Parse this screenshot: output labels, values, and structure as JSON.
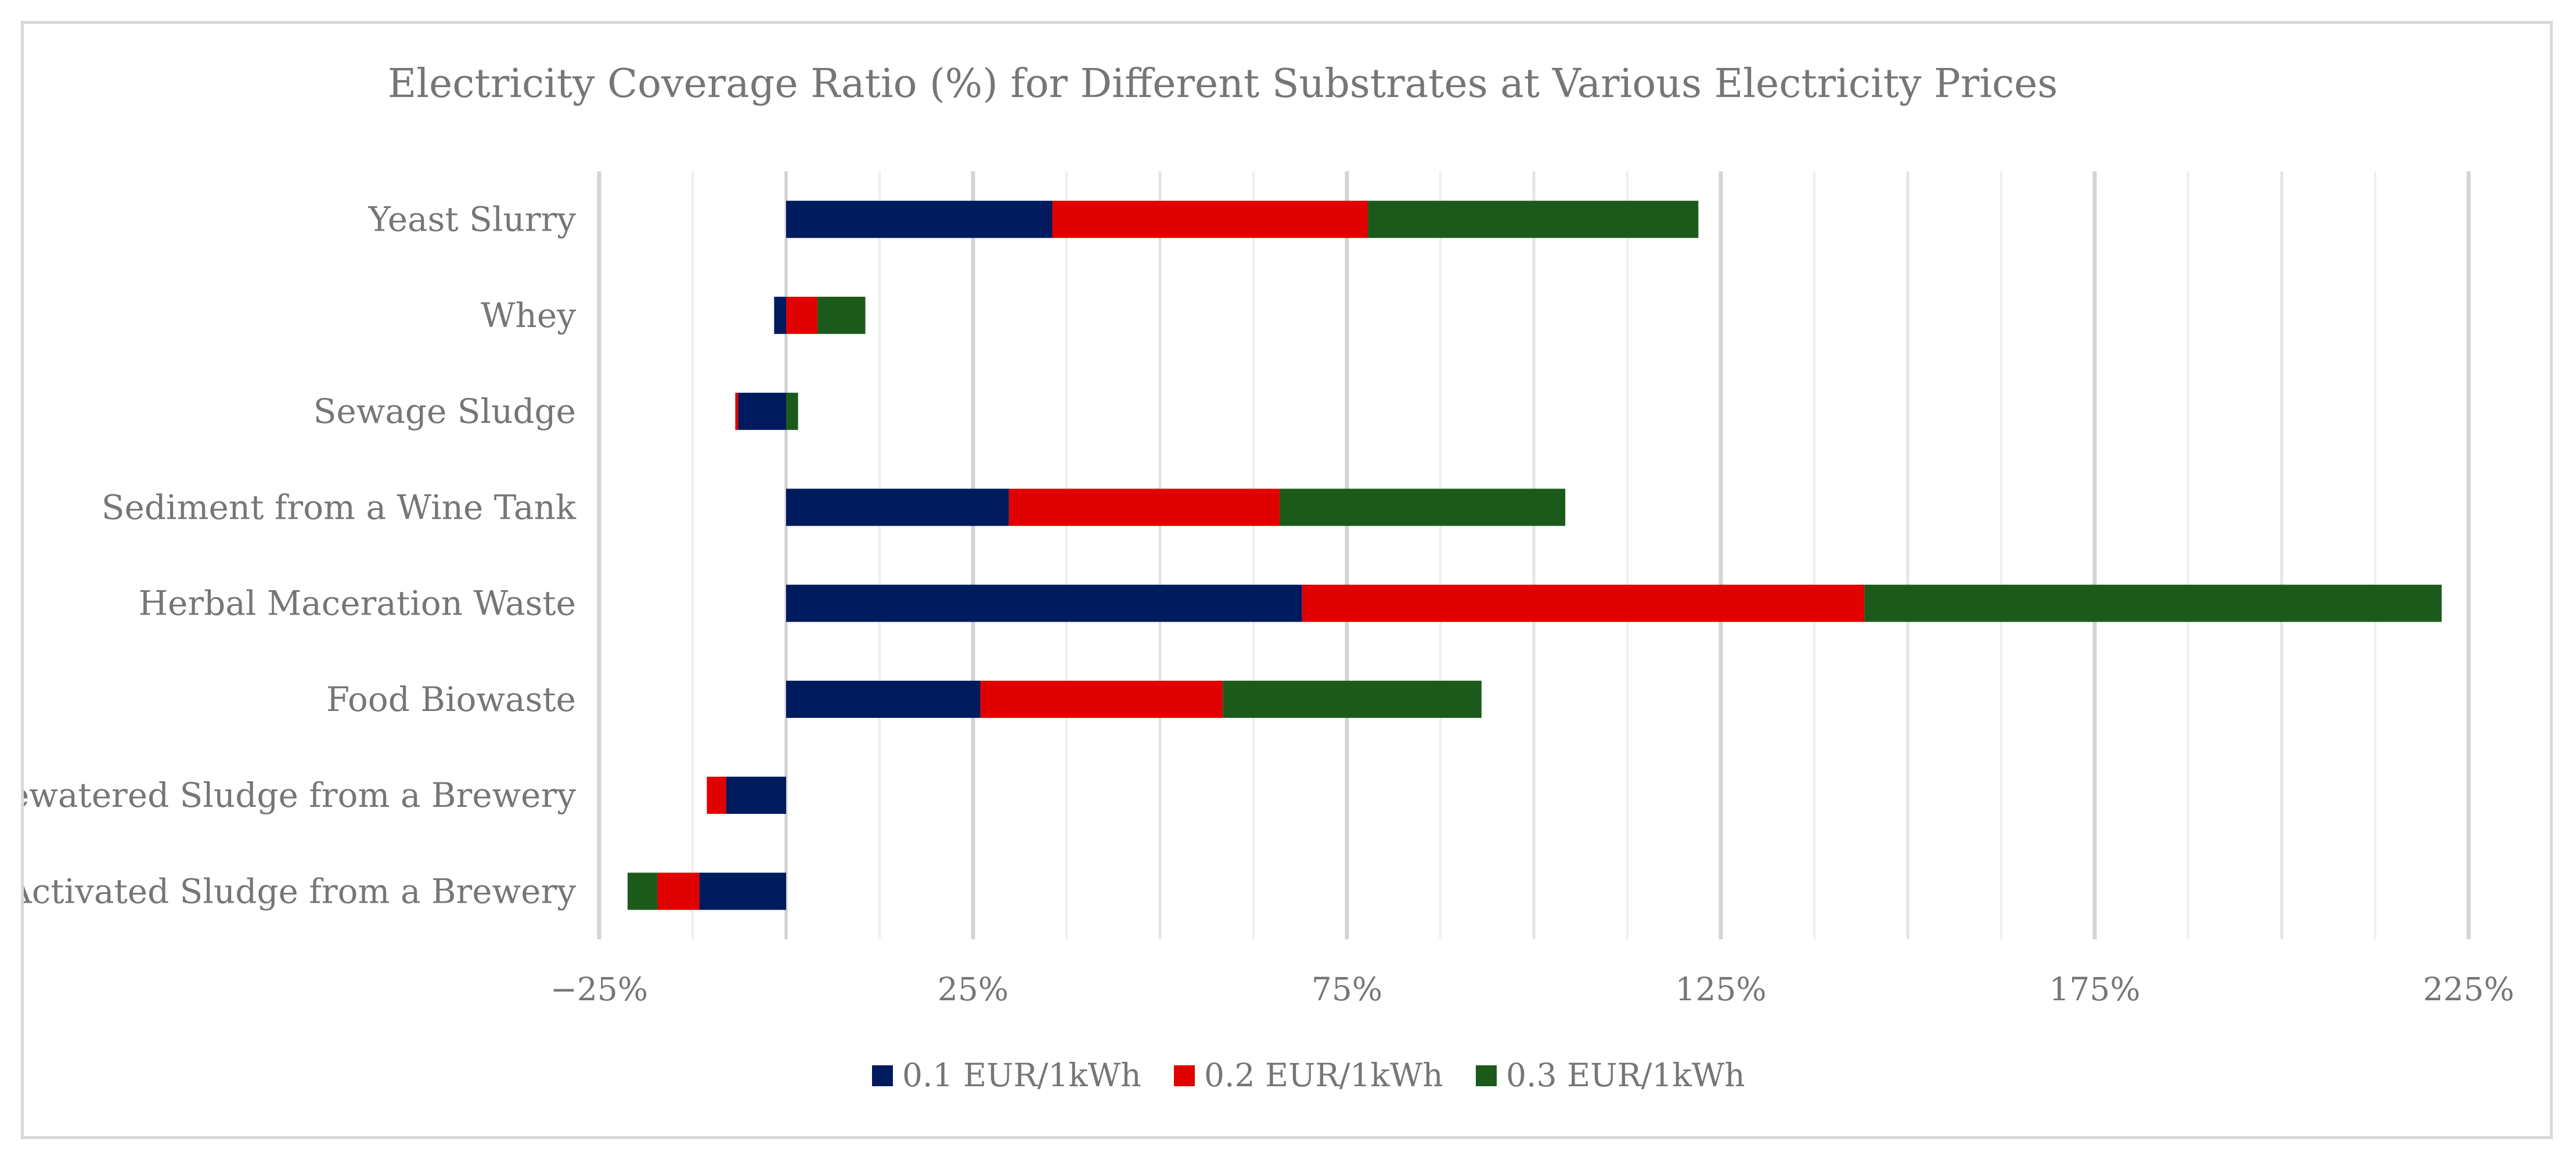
{
  "chart_data": {
    "type": "bar",
    "orientation": "horizontal",
    "stacked": true,
    "title": "Electricity Coverage Ratio (%) for Different Substrates at Various Electricity Prices",
    "xlabel": "",
    "ylabel": "",
    "xlim": [
      -25,
      225
    ],
    "x_ticks": [
      -25,
      25,
      75,
      125,
      175,
      225
    ],
    "x_tick_labels": [
      "−25%",
      "25%",
      "75%",
      "125%",
      "175%",
      "225%"
    ],
    "categories": [
      "Yeast Slurry",
      "Whey",
      "Sewage Sludge",
      "Sediment from a Wine Tank",
      "Herbal Maceration Waste",
      "Food Biowaste",
      "Dewatered Sludge from a Brewery",
      "Activated Sludge from a Brewery"
    ],
    "series": [
      {
        "name": "0.1 EUR/1kWh",
        "color": "#001a5e",
        "values": [
          35.6,
          -1.6,
          -6.4,
          29.8,
          69.0,
          26.0,
          -8.0,
          -11.6
        ]
      },
      {
        "name": "0.2 EUR/1kWh",
        "color": "#e00000",
        "values": [
          42.2,
          4.2,
          -0.4,
          36.2,
          75.2,
          32.4,
          -2.6,
          -5.6
        ]
      },
      {
        "name": "0.3 EUR/1kWh",
        "color": "#1c5a1c",
        "values": [
          44.2,
          6.4,
          1.6,
          38.2,
          77.2,
          34.6,
          0.0,
          -4.0
        ]
      }
    ],
    "grid": true,
    "legend_position": "bottom-center"
  }
}
